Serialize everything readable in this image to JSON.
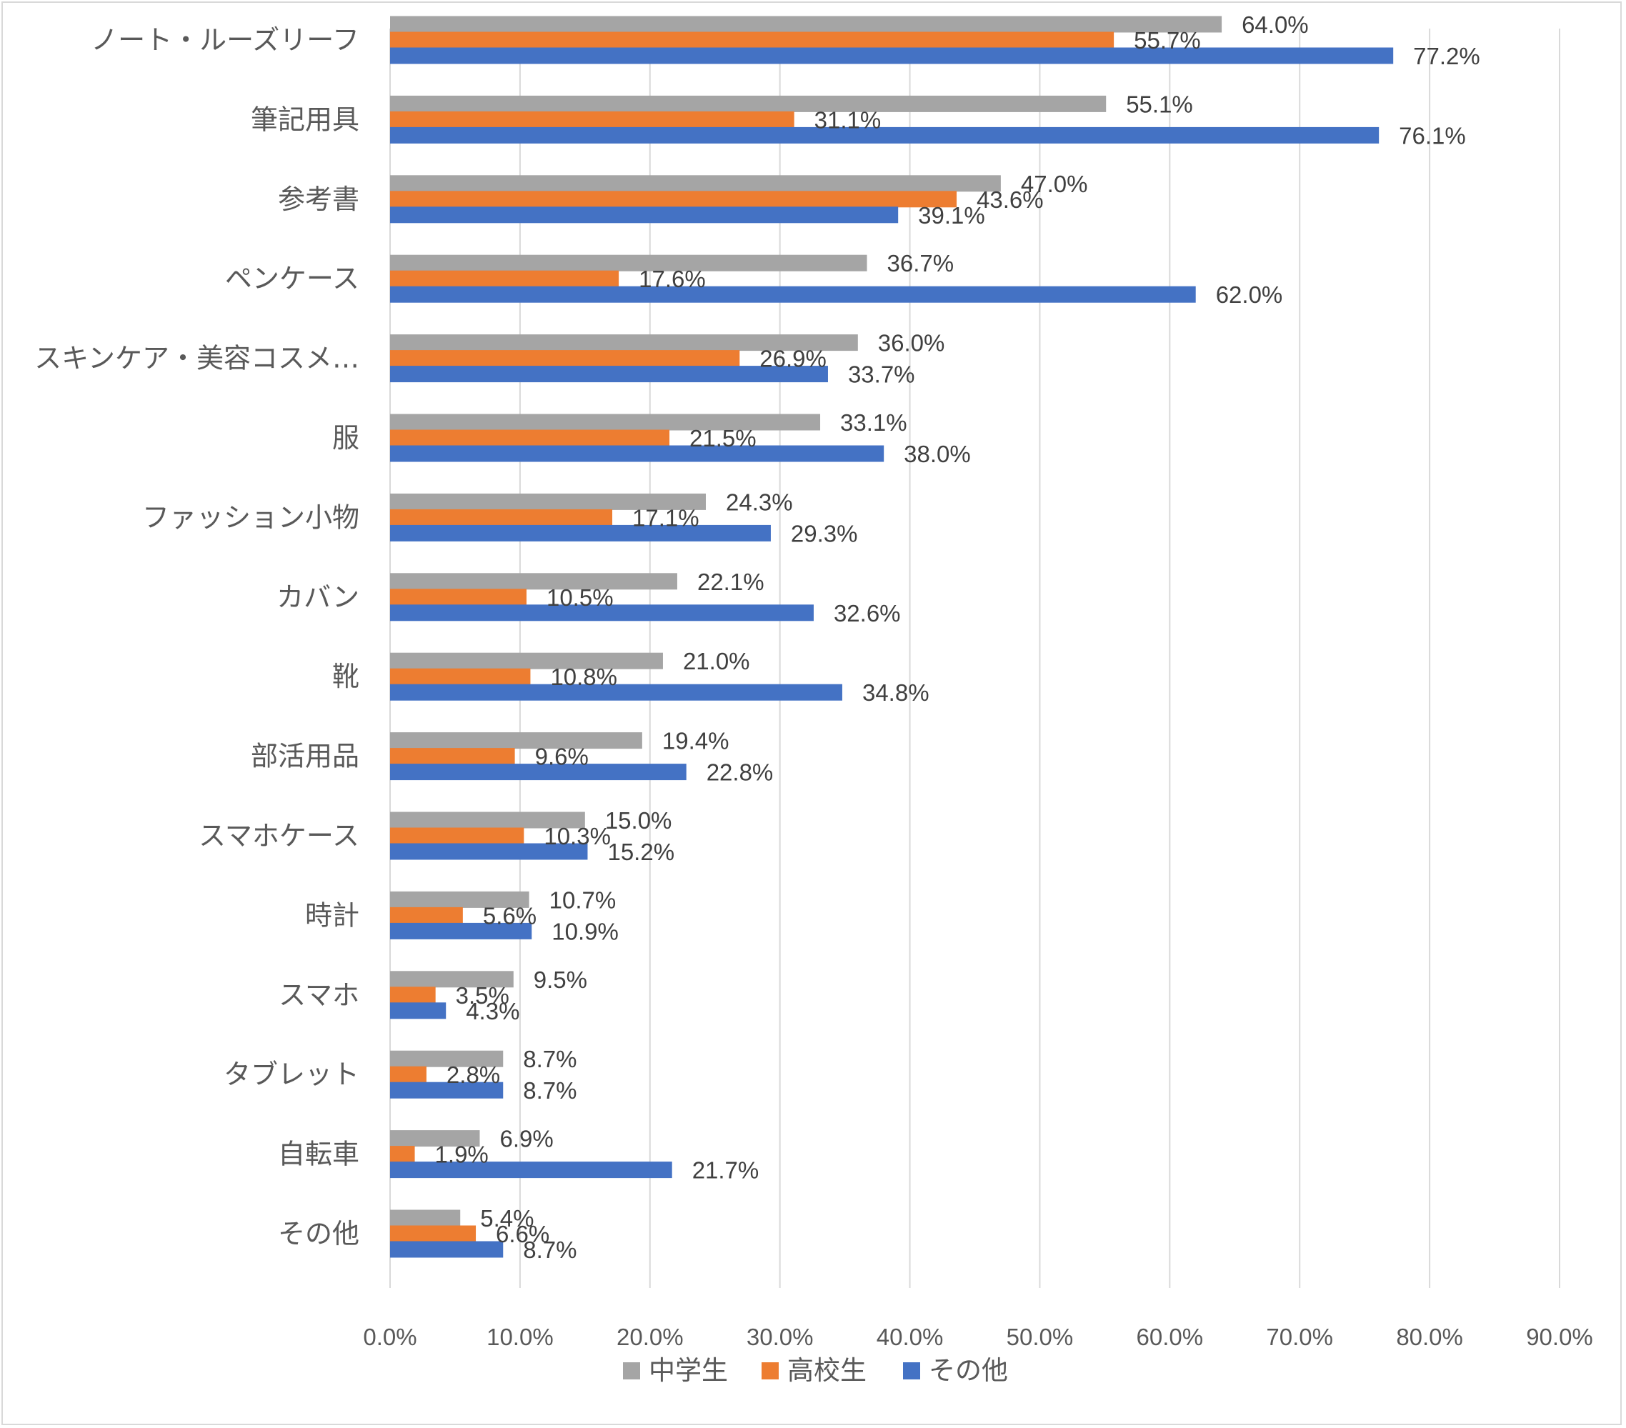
{
  "chart_data": {
    "type": "bar",
    "orientation": "horizontal",
    "categories": [
      "ノート・ルーズリーフ",
      "筆記用具",
      "参考書",
      "ペンケース",
      "スキンケア・美容コスメ…",
      "服",
      "ファッション小物",
      "カバン",
      "靴",
      "部活用品",
      "スマホケース",
      "時計",
      "スマホ",
      "タブレット",
      "自転車",
      "その他"
    ],
    "series": [
      {
        "name": "中学生",
        "color": "#a5a5a5",
        "values": [
          64.0,
          55.1,
          47.0,
          36.7,
          36.0,
          33.1,
          24.3,
          22.1,
          21.0,
          19.4,
          15.0,
          10.7,
          9.5,
          8.7,
          6.9,
          5.4
        ],
        "labels": [
          "64.0%",
          "55.1%",
          "47.0%",
          "36.7%",
          "36.0%",
          "33.1%",
          "24.3%",
          "22.1%",
          "21.0%",
          "19.4%",
          "15.0%",
          "10.7%",
          "9.5%",
          "8.7%",
          "6.9%",
          "5.4%"
        ]
      },
      {
        "name": "高校生",
        "color": "#ed7d31",
        "values": [
          55.7,
          31.1,
          43.6,
          17.6,
          26.9,
          21.5,
          17.1,
          10.5,
          10.8,
          9.6,
          10.3,
          5.6,
          3.5,
          2.8,
          1.9,
          6.6
        ],
        "labels": [
          "55.7%",
          "31.1%",
          "43.6%",
          "17.6%",
          "26.9%",
          "21.5%",
          "17.1%",
          "10.5%",
          "10.8%",
          "9.6%",
          "10.3%",
          "5.6%",
          "3.5%",
          "2.8%",
          "1.9%",
          "6.6%"
        ]
      },
      {
        "name": "その他",
        "color": "#4472c4",
        "values": [
          77.2,
          76.1,
          39.1,
          62.0,
          33.7,
          38.0,
          29.3,
          32.6,
          34.8,
          22.8,
          15.2,
          10.9,
          4.3,
          8.7,
          21.7,
          8.7
        ],
        "labels": [
          "77.2%",
          "76.1%",
          "39.1%",
          "62.0%",
          "33.7%",
          "38.0%",
          "29.3%",
          "32.6%",
          "34.8%",
          "22.8%",
          "15.2%",
          "10.9%",
          "4.3%",
          "8.7%",
          "21.7%",
          "8.7%"
        ]
      }
    ],
    "xlim": [
      0,
      90
    ],
    "x_ticks": [
      0,
      10,
      20,
      30,
      40,
      50,
      60,
      70,
      80,
      90
    ],
    "x_tick_labels": [
      "0.0%",
      "10.0%",
      "20.0%",
      "30.0%",
      "40.0%",
      "50.0%",
      "60.0%",
      "70.0%",
      "80.0%",
      "90.0%"
    ],
    "grid": "vertical",
    "legend_position": "bottom",
    "title": "",
    "xlabel": "",
    "ylabel": ""
  }
}
